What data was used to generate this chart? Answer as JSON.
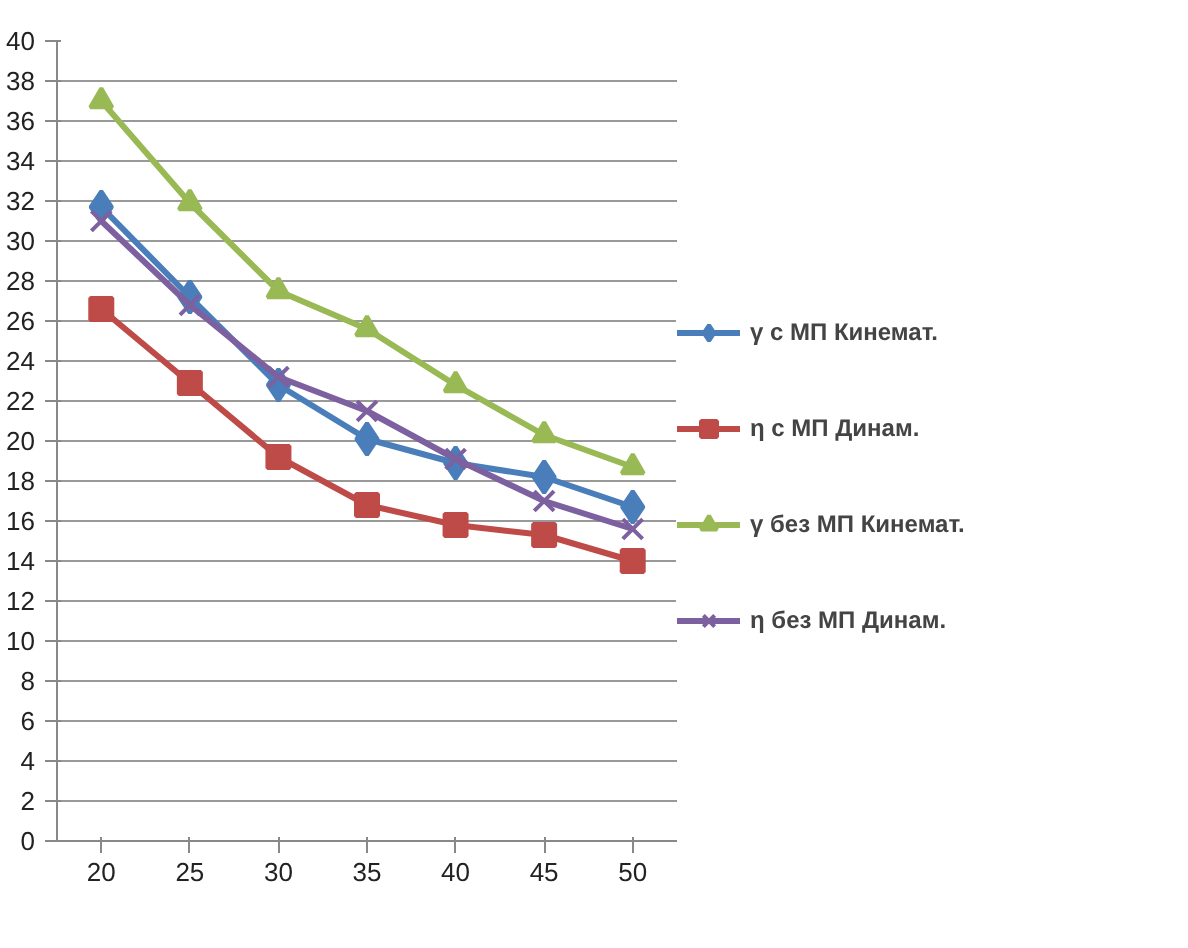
{
  "chart_data": {
    "type": "line",
    "categories": [
      "20",
      "25",
      "30",
      "35",
      "40",
      "45",
      "50"
    ],
    "ylim": [
      0,
      40
    ],
    "yticks": [
      0,
      2,
      4,
      6,
      8,
      10,
      12,
      14,
      16,
      18,
      20,
      22,
      24,
      26,
      28,
      30,
      32,
      34,
      36,
      38,
      40
    ],
    "grid": "y",
    "legend": "right",
    "series": [
      {
        "name": "γ с МП Кинемат.",
        "color": "#4a7ebb",
        "marker": "diamond",
        "values": [
          31.7,
          27.2,
          22.8,
          20.1,
          18.9,
          18.2,
          16.7
        ]
      },
      {
        "name": "η с МП Динам.",
        "color": "#be4b48",
        "marker": "square",
        "values": [
          26.6,
          22.9,
          19.2,
          16.8,
          15.8,
          15.3,
          14.0
        ]
      },
      {
        "name": "γ без МП Кинемат.",
        "color": "#98b954",
        "marker": "triangle",
        "values": [
          37.0,
          31.9,
          27.5,
          25.6,
          22.8,
          20.3,
          18.7
        ]
      },
      {
        "name": "η без МП Динам.",
        "color": "#7d60a0",
        "marker": "cross",
        "values": [
          31.0,
          26.8,
          23.2,
          21.5,
          19.1,
          17.0,
          15.6
        ]
      }
    ]
  }
}
